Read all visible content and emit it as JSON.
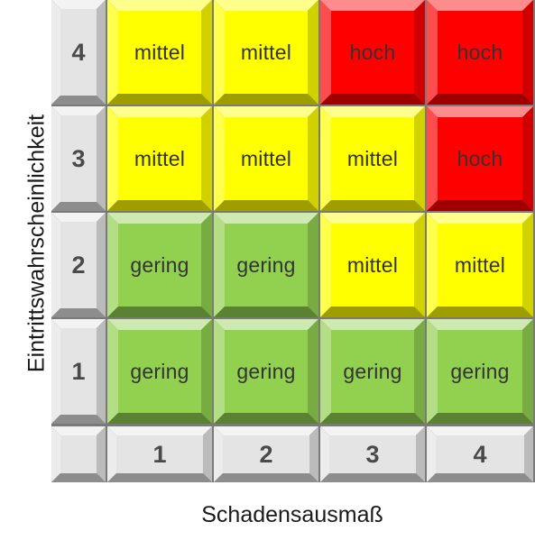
{
  "axes": {
    "y_label": "Eintrittswahrscheinlichkeit",
    "x_label": "Schadensausmaß",
    "y_ticks": [
      "4",
      "3",
      "2",
      "1"
    ],
    "x_ticks": [
      "1",
      "2",
      "3",
      "4"
    ]
  },
  "levels": {
    "gering": {
      "label": "gering",
      "color": "#92d050"
    },
    "mittel": {
      "label": "mittel",
      "color": "#ffff00"
    },
    "hoch": {
      "label": "hoch",
      "color": "#ff0000"
    }
  },
  "matrix": [
    [
      "mittel",
      "mittel",
      "hoch",
      "hoch"
    ],
    [
      "mittel",
      "mittel",
      "mittel",
      "hoch"
    ],
    [
      "gering",
      "gering",
      "mittel",
      "mittel"
    ],
    [
      "gering",
      "gering",
      "gering",
      "gering"
    ]
  ],
  "header_color": "#e4e4e4"
}
